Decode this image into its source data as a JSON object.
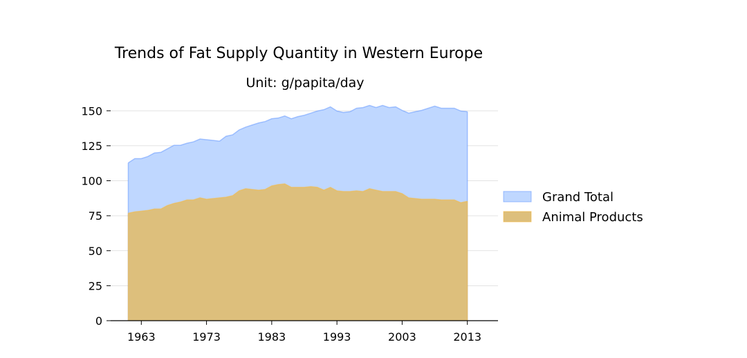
{
  "chart_data": {
    "type": "area",
    "title": "Trends of Fat Supply Quantity in Western Europe",
    "subtitle": "Unit: g/papita/day",
    "xlabel": "",
    "ylabel": "",
    "xlim": [
      1958.3,
      2017.7
    ],
    "ylim": [
      0,
      160
    ],
    "x_ticks": [
      1963,
      1973,
      1983,
      1993,
      2003,
      2013
    ],
    "y_ticks": [
      0,
      25,
      50,
      75,
      100,
      125,
      150
    ],
    "grid": "horizontal",
    "legend_position": "right",
    "x": [
      1961,
      1962,
      1963,
      1964,
      1965,
      1966,
      1967,
      1968,
      1969,
      1970,
      1971,
      1972,
      1973,
      1974,
      1975,
      1976,
      1977,
      1978,
      1979,
      1980,
      1981,
      1982,
      1983,
      1984,
      1985,
      1986,
      1987,
      1988,
      1989,
      1990,
      1991,
      1992,
      1993,
      1994,
      1995,
      1996,
      1997,
      1998,
      1999,
      2000,
      2001,
      2002,
      2003,
      2004,
      2005,
      2006,
      2007,
      2008,
      2009,
      2010,
      2011,
      2012,
      2013
    ],
    "series": [
      {
        "name": "Grand Total",
        "color": "#6699ff",
        "fill": "#bfd7ff",
        "values": [
          112.8,
          115.8,
          115.8,
          117.3,
          119.8,
          120.3,
          122.8,
          125.3,
          125.3,
          126.8,
          127.8,
          129.8,
          129.3,
          128.8,
          128.3,
          131.8,
          132.8,
          136.3,
          138.3,
          139.8,
          141.3,
          142.3,
          144.3,
          144.8,
          146.3,
          144.3,
          145.8,
          146.8,
          148.3,
          149.8,
          150.8,
          152.8,
          149.8,
          148.8,
          149.3,
          151.8,
          152.3,
          153.8,
          152.3,
          153.8,
          152.3,
          152.8,
          150.3,
          148.3,
          149.3,
          150.3,
          151.8,
          153.3,
          151.8,
          151.8,
          151.8,
          149.8,
          149.3
        ]
      },
      {
        "name": "Animal Products",
        "color": "#f5b942",
        "fill": "#ddbf7c",
        "values": [
          76.8,
          77.8,
          78.3,
          78.8,
          79.8,
          79.8,
          82.3,
          83.8,
          84.8,
          86.3,
          86.3,
          87.8,
          86.8,
          87.3,
          87.8,
          88.3,
          89.3,
          92.8,
          94.3,
          93.8,
          93.3,
          93.8,
          96.3,
          97.3,
          97.8,
          95.3,
          95.3,
          95.3,
          95.8,
          95.3,
          93.3,
          95.3,
          92.8,
          92.3,
          92.3,
          92.8,
          92.3,
          94.3,
          93.3,
          92.3,
          92.3,
          92.3,
          90.8,
          87.8,
          87.3,
          86.8,
          86.8,
          86.8,
          86.3,
          86.3,
          86.3,
          84.3,
          85.3
        ]
      }
    ]
  }
}
